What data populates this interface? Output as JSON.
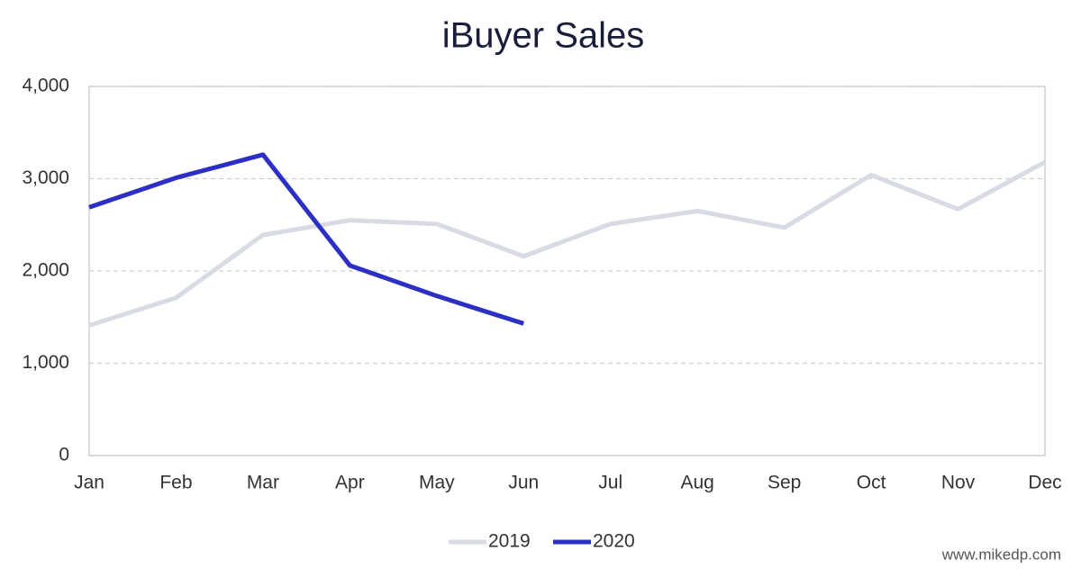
{
  "chart_data": {
    "type": "line",
    "title": "iBuyer Sales",
    "categories": [
      "Jan",
      "Feb",
      "Mar",
      "Apr",
      "May",
      "Jun",
      "Jul",
      "Aug",
      "Sep",
      "Oct",
      "Nov",
      "Dec"
    ],
    "series": [
      {
        "name": "2019",
        "color": "#d8dbe3",
        "values": [
          1410,
          1710,
          2390,
          2550,
          2510,
          2160,
          2510,
          2650,
          2470,
          3040,
          2670,
          3180
        ]
      },
      {
        "name": "2020",
        "color": "#2b2fc4",
        "values": [
          2690,
          3010,
          3260,
          2060,
          1730,
          1430,
          null,
          null,
          null,
          null,
          null,
          null
        ]
      }
    ],
    "ylim": [
      0,
      4000
    ],
    "yticks": [
      0,
      {
        "value": 1000,
        "label": "1,000"
      },
      {
        "value": 2000,
        "label": "2,000"
      },
      {
        "value": 3000,
        "label": "3,000"
      },
      {
        "value": 4000,
        "label": "4,000"
      }
    ],
    "grid": true,
    "legend": "bottom",
    "watermark": "www.mikedp.com"
  }
}
